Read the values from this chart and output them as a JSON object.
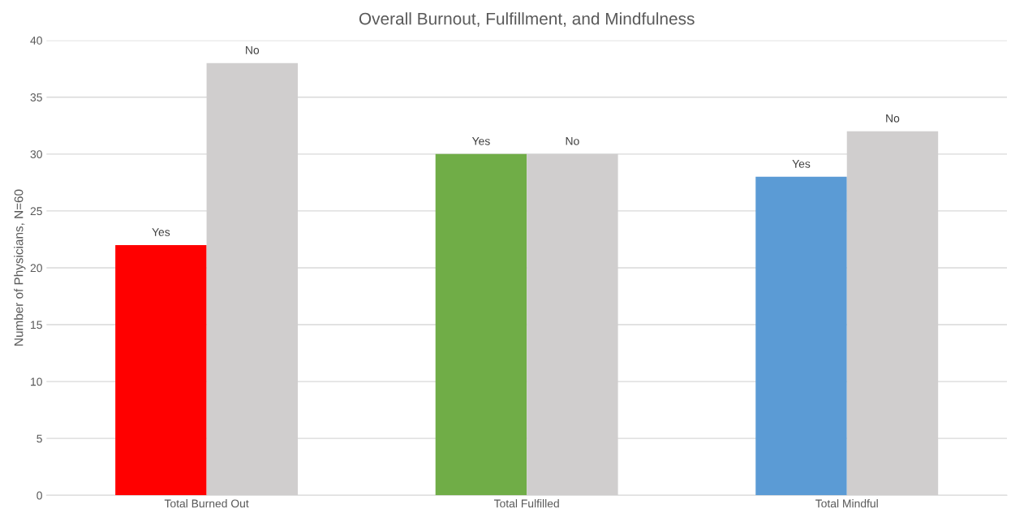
{
  "chart_data": {
    "type": "bar",
    "title": "Overall Burnout, Fulfillment, and Mindfulness",
    "ylabel": "Number of Physicians, N=60",
    "categories": [
      "Total Burned Out",
      "Total Fulfilled",
      "Total Mindful"
    ],
    "series": [
      {
        "name": "Yes",
        "colors": [
          "#ff0000",
          "#70ad47",
          "#5b9bd5"
        ],
        "values": [
          22,
          30,
          28
        ]
      },
      {
        "name": "No",
        "color": "#d0cece",
        "values": [
          38,
          30,
          32
        ]
      }
    ],
    "ylim": [
      0,
      40
    ],
    "yticks": [
      0,
      5,
      10,
      15,
      20,
      25,
      30,
      35,
      40
    ],
    "grid": "y",
    "legend": false
  }
}
